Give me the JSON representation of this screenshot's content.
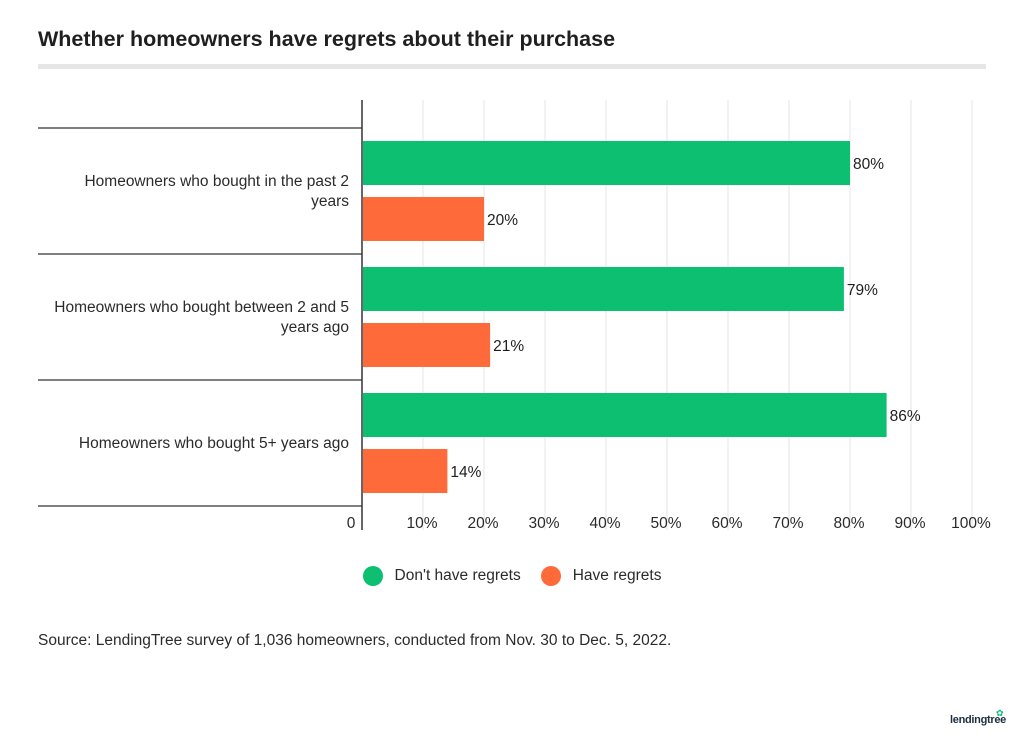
{
  "title": "Whether homeowners have regrets about their purchase",
  "legend": {
    "series1": "Don't have regrets",
    "series2": "Have regrets"
  },
  "source": "Source: LendingTree survey of 1,036 homeowners, conducted from Nov. 30 to Dec. 5, 2022.",
  "brand": "lendingtree",
  "colors": {
    "series1": "#0dbf70",
    "series2": "#ff6a3a",
    "grid": "#e5e5e5",
    "axis": "#333333"
  },
  "chart_data": {
    "type": "bar",
    "orientation": "horizontal",
    "categories": [
      [
        "Homeowners who bought in the past 2",
        "years"
      ],
      [
        "Homeowners who bought between 2 and 5",
        "years ago"
      ],
      [
        "Homeowners who bought 5+ years ago"
      ]
    ],
    "series": [
      {
        "name": "Don't have regrets",
        "values": [
          80,
          79,
          86
        ],
        "labels": [
          "80%",
          "79%",
          "86%"
        ]
      },
      {
        "name": "Have regrets",
        "values": [
          20,
          21,
          14
        ],
        "labels": [
          "20%",
          "21%",
          "14%"
        ]
      }
    ],
    "xlim": [
      0,
      100
    ],
    "xticks": [
      0,
      10,
      20,
      30,
      40,
      50,
      60,
      70,
      80,
      90,
      100
    ],
    "xtick_labels": [
      "0",
      "10%",
      "20%",
      "30%",
      "40%",
      "50%",
      "60%",
      "70%",
      "80%",
      "90%",
      "100%"
    ],
    "grid": true,
    "legend_position": "bottom"
  }
}
